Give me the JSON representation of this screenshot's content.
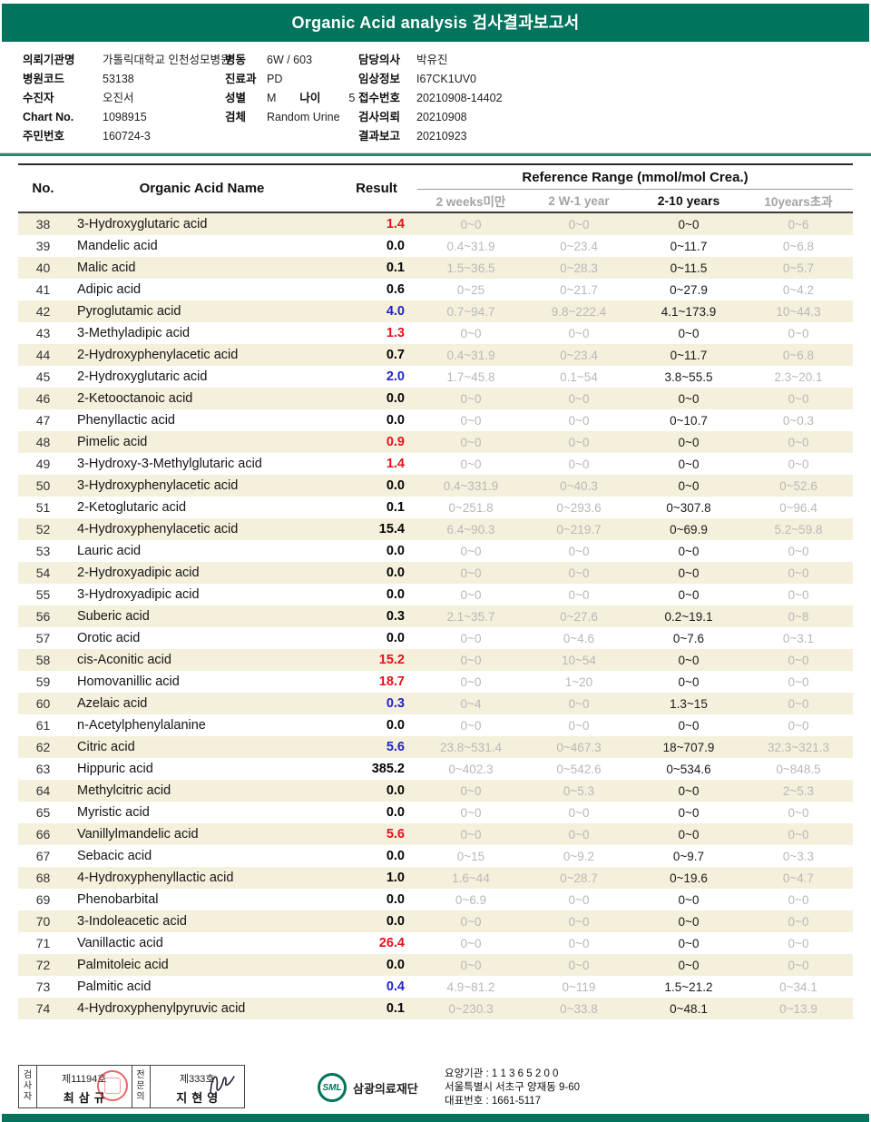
{
  "colors": {
    "accent_teal": "#00745c",
    "high_red": "#e8101c",
    "low_blue": "#2222cc",
    "row_stripe": "#f5f0dc"
  },
  "header": {
    "title": "Organic Acid analysis 검사결과보고서"
  },
  "patient": {
    "left": [
      {
        "label": "의뢰기관명",
        "value": "가톨릭대학교 인천성모병원"
      },
      {
        "label": "병원코드",
        "value": "53138"
      },
      {
        "label": "수진자",
        "value": "오진서"
      },
      {
        "label": "Chart No.",
        "value": "1098915"
      },
      {
        "label": "주민번호",
        "value": "160724-3"
      }
    ],
    "mid": [
      {
        "label": "병동",
        "value": "6W / 603"
      },
      {
        "label": "진료과",
        "value": "PD"
      },
      {
        "label": "성별",
        "value": "M",
        "label2": "나이",
        "value2": "5"
      },
      {
        "label": "검체",
        "value": "Random Urine"
      }
    ],
    "right": [
      {
        "label": "담당의사",
        "value": "박유진"
      },
      {
        "label": "임상정보",
        "value": "I67CK1UV0"
      },
      {
        "label": "접수번호",
        "value": "20210908-14402"
      },
      {
        "label": "검사의뢰",
        "value": "20210908"
      },
      {
        "label": "결과보고",
        "value": "20210923"
      }
    ]
  },
  "table": {
    "col_no": "No.",
    "col_name": "Organic Acid Name",
    "col_result": "Result",
    "ref_range_title": "Reference Range (mmol/mol Crea.)",
    "range_headers": [
      "2 weeks미만",
      "2 W-1 year",
      "2-10 years",
      "10years초과"
    ],
    "rows": [
      {
        "no": "38",
        "name": "3-Hydroxyglutaric acid",
        "result": "1.4",
        "flag": "high",
        "ranges": [
          "0~0",
          "0~0",
          "0~0",
          "0~6"
        ]
      },
      {
        "no": "39",
        "name": "Mandelic acid",
        "result": "0.0",
        "flag": "normal",
        "ranges": [
          "0.4~31.9",
          "0~23.4",
          "0~11.7",
          "0~6.8"
        ]
      },
      {
        "no": "40",
        "name": "Malic acid",
        "result": "0.1",
        "flag": "normal",
        "ranges": [
          "1.5~36.5",
          "0~28.3",
          "0~11.5",
          "0~5.7"
        ]
      },
      {
        "no": "41",
        "name": "Adipic acid",
        "result": "0.6",
        "flag": "normal",
        "ranges": [
          "0~25",
          "0~21.7",
          "0~27.9",
          "0~4.2"
        ]
      },
      {
        "no": "42",
        "name": "Pyroglutamic acid",
        "result": "4.0",
        "flag": "low",
        "ranges": [
          "0.7~94.7",
          "9.8~222.4",
          "4.1~173.9",
          "10~44.3"
        ]
      },
      {
        "no": "43",
        "name": "3-Methyladipic acid",
        "result": "1.3",
        "flag": "high",
        "ranges": [
          "0~0",
          "0~0",
          "0~0",
          "0~0"
        ]
      },
      {
        "no": "44",
        "name": "2-Hydroxyphenylacetic acid",
        "result": "0.7",
        "flag": "normal",
        "ranges": [
          "0.4~31.9",
          "0~23.4",
          "0~11.7",
          "0~6.8"
        ]
      },
      {
        "no": "45",
        "name": "2-Hydroxyglutaric acid",
        "result": "2.0",
        "flag": "low",
        "ranges": [
          "1.7~45.8",
          "0.1~54",
          "3.8~55.5",
          "2.3~20.1"
        ]
      },
      {
        "no": "46",
        "name": "2-Ketooctanoic acid",
        "result": "0.0",
        "flag": "normal",
        "ranges": [
          "0~0",
          "0~0",
          "0~0",
          "0~0"
        ]
      },
      {
        "no": "47",
        "name": "Phenyllactic acid",
        "result": "0.0",
        "flag": "normal",
        "ranges": [
          "0~0",
          "0~0",
          "0~10.7",
          "0~0.3"
        ]
      },
      {
        "no": "48",
        "name": "Pimelic acid",
        "result": "0.9",
        "flag": "high",
        "ranges": [
          "0~0",
          "0~0",
          "0~0",
          "0~0"
        ]
      },
      {
        "no": "49",
        "name": "3-Hydroxy-3-Methylglutaric acid",
        "result": "1.4",
        "flag": "high",
        "ranges": [
          "0~0",
          "0~0",
          "0~0",
          "0~0"
        ]
      },
      {
        "no": "50",
        "name": "3-Hydroxyphenylacetic acid",
        "result": "0.0",
        "flag": "normal",
        "ranges": [
          "0.4~331.9",
          "0~40.3",
          "0~0",
          "0~52.6"
        ]
      },
      {
        "no": "51",
        "name": "2-Ketoglutaric acid",
        "result": "0.1",
        "flag": "normal",
        "ranges": [
          "0~251.8",
          "0~293.6",
          "0~307.8",
          "0~96.4"
        ]
      },
      {
        "no": "52",
        "name": "4-Hydroxyphenylacetic acid",
        "result": "15.4",
        "flag": "normal",
        "ranges": [
          "6.4~90.3",
          "0~219.7",
          "0~69.9",
          "5.2~59.8"
        ]
      },
      {
        "no": "53",
        "name": "Lauric acid",
        "result": "0.0",
        "flag": "normal",
        "ranges": [
          "0~0",
          "0~0",
          "0~0",
          "0~0"
        ]
      },
      {
        "no": "54",
        "name": "2-Hydroxyadipic acid",
        "result": "0.0",
        "flag": "normal",
        "ranges": [
          "0~0",
          "0~0",
          "0~0",
          "0~0"
        ]
      },
      {
        "no": "55",
        "name": "3-Hydroxyadipic acid",
        "result": "0.0",
        "flag": "normal",
        "ranges": [
          "0~0",
          "0~0",
          "0~0",
          "0~0"
        ]
      },
      {
        "no": "56",
        "name": "Suberic acid",
        "result": "0.3",
        "flag": "normal",
        "ranges": [
          "2.1~35.7",
          "0~27.6",
          "0.2~19.1",
          "0~8"
        ]
      },
      {
        "no": "57",
        "name": "Orotic acid",
        "result": "0.0",
        "flag": "normal",
        "ranges": [
          "0~0",
          "0~4.6",
          "0~7.6",
          "0~3.1"
        ]
      },
      {
        "no": "58",
        "name": "cis-Aconitic acid",
        "result": "15.2",
        "flag": "high",
        "ranges": [
          "0~0",
          "10~54",
          "0~0",
          "0~0"
        ]
      },
      {
        "no": "59",
        "name": "Homovanillic acid",
        "result": "18.7",
        "flag": "high",
        "ranges": [
          "0~0",
          "1~20",
          "0~0",
          "0~0"
        ]
      },
      {
        "no": "60",
        "name": "Azelaic acid",
        "result": "0.3",
        "flag": "low",
        "ranges": [
          "0~4",
          "0~0",
          "1.3~15",
          "0~0"
        ]
      },
      {
        "no": "61",
        "name": "n-Acetylphenylalanine",
        "result": "0.0",
        "flag": "normal",
        "ranges": [
          "0~0",
          "0~0",
          "0~0",
          "0~0"
        ]
      },
      {
        "no": "62",
        "name": "Citric acid",
        "result": "5.6",
        "flag": "low",
        "ranges": [
          "23.8~531.4",
          "0~467.3",
          "18~707.9",
          "32.3~321.3"
        ]
      },
      {
        "no": "63",
        "name": "Hippuric acid",
        "result": "385.2",
        "flag": "normal",
        "ranges": [
          "0~402.3",
          "0~542.6",
          "0~534.6",
          "0~848.5"
        ]
      },
      {
        "no": "64",
        "name": "Methylcitric acid",
        "result": "0.0",
        "flag": "normal",
        "ranges": [
          "0~0",
          "0~5.3",
          "0~0",
          "2~5.3"
        ]
      },
      {
        "no": "65",
        "name": "Myristic acid",
        "result": "0.0",
        "flag": "normal",
        "ranges": [
          "0~0",
          "0~0",
          "0~0",
          "0~0"
        ]
      },
      {
        "no": "66",
        "name": "Vanillylmandelic acid",
        "result": "5.6",
        "flag": "high",
        "ranges": [
          "0~0",
          "0~0",
          "0~0",
          "0~0"
        ]
      },
      {
        "no": "67",
        "name": "Sebacic acid",
        "result": "0.0",
        "flag": "normal",
        "ranges": [
          "0~15",
          "0~9.2",
          "0~9.7",
          "0~3.3"
        ]
      },
      {
        "no": "68",
        "name": "4-Hydroxyphenyllactic acid",
        "result": "1.0",
        "flag": "normal",
        "ranges": [
          "1.6~44",
          "0~28.7",
          "0~19.6",
          "0~4.7"
        ]
      },
      {
        "no": "69",
        "name": "Phenobarbital",
        "result": "0.0",
        "flag": "normal",
        "ranges": [
          "0~6.9",
          "0~0",
          "0~0",
          "0~0"
        ]
      },
      {
        "no": "70",
        "name": "3-Indoleacetic acid",
        "result": "0.0",
        "flag": "normal",
        "ranges": [
          "0~0",
          "0~0",
          "0~0",
          "0~0"
        ]
      },
      {
        "no": "71",
        "name": "Vanillactic acid",
        "result": "26.4",
        "flag": "high",
        "ranges": [
          "0~0",
          "0~0",
          "0~0",
          "0~0"
        ]
      },
      {
        "no": "72",
        "name": "Palmitoleic acid",
        "result": "0.0",
        "flag": "normal",
        "ranges": [
          "0~0",
          "0~0",
          "0~0",
          "0~0"
        ]
      },
      {
        "no": "73",
        "name": "Palmitic acid",
        "result": "0.4",
        "flag": "low",
        "ranges": [
          "4.9~81.2",
          "0~119",
          "1.5~21.2",
          "0~34.1"
        ]
      },
      {
        "no": "74",
        "name": "4-Hydroxyphenylpyruvic acid",
        "result": "0.1",
        "flag": "normal",
        "ranges": [
          "0~230.3",
          "0~33.8",
          "0~48.1",
          "0~13.9"
        ]
      }
    ]
  },
  "footer": {
    "examiner_role": "검사자",
    "examiner_license": "제11194호",
    "examiner_name": "최삼규",
    "specialist_role": "전문의",
    "specialist_license": "제333호",
    "specialist_name": "지현영",
    "lab_abbr": "SML",
    "lab_name": "삼광의료재단",
    "org_code": "요양기관 : 1 1 3 6 5 2 0 0",
    "address": "서울특별시 서초구 양재동 9-60",
    "phone": "대표번호 : 1661-5117"
  }
}
